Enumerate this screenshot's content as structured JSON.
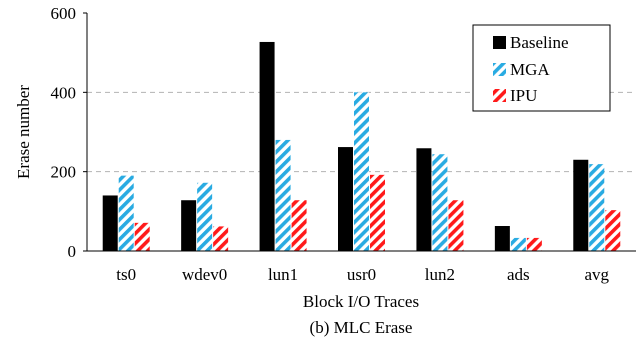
{
  "chart_data": {
    "type": "bar",
    "title": "",
    "caption": "(b) MLC Erase",
    "xlabel": "Block I/O Traces",
    "ylabel": "Erase number",
    "ylim": [
      0,
      600
    ],
    "yticks": [
      0,
      200,
      400,
      600
    ],
    "grid": "horizontal dashed at 200 and 400",
    "legend_position": "top-right",
    "categories": [
      "ts0",
      "wdev0",
      "lun1",
      "usr0",
      "lun2",
      "ads",
      "avg"
    ],
    "series": [
      {
        "name": "Baseline",
        "color": "#000000",
        "pattern": "solid",
        "values": [
          140,
          128,
          527,
          262,
          259,
          63,
          230
        ]
      },
      {
        "name": "MGA",
        "color": "#29ABE2",
        "pattern": "diagonal-stripes",
        "values": [
          190,
          172,
          280,
          400,
          244,
          33,
          219
        ]
      },
      {
        "name": "IPU",
        "color": "#FF1A1A",
        "pattern": "diagonal-stripes",
        "values": [
          71,
          62,
          128,
          192,
          128,
          33,
          103
        ]
      }
    ]
  }
}
